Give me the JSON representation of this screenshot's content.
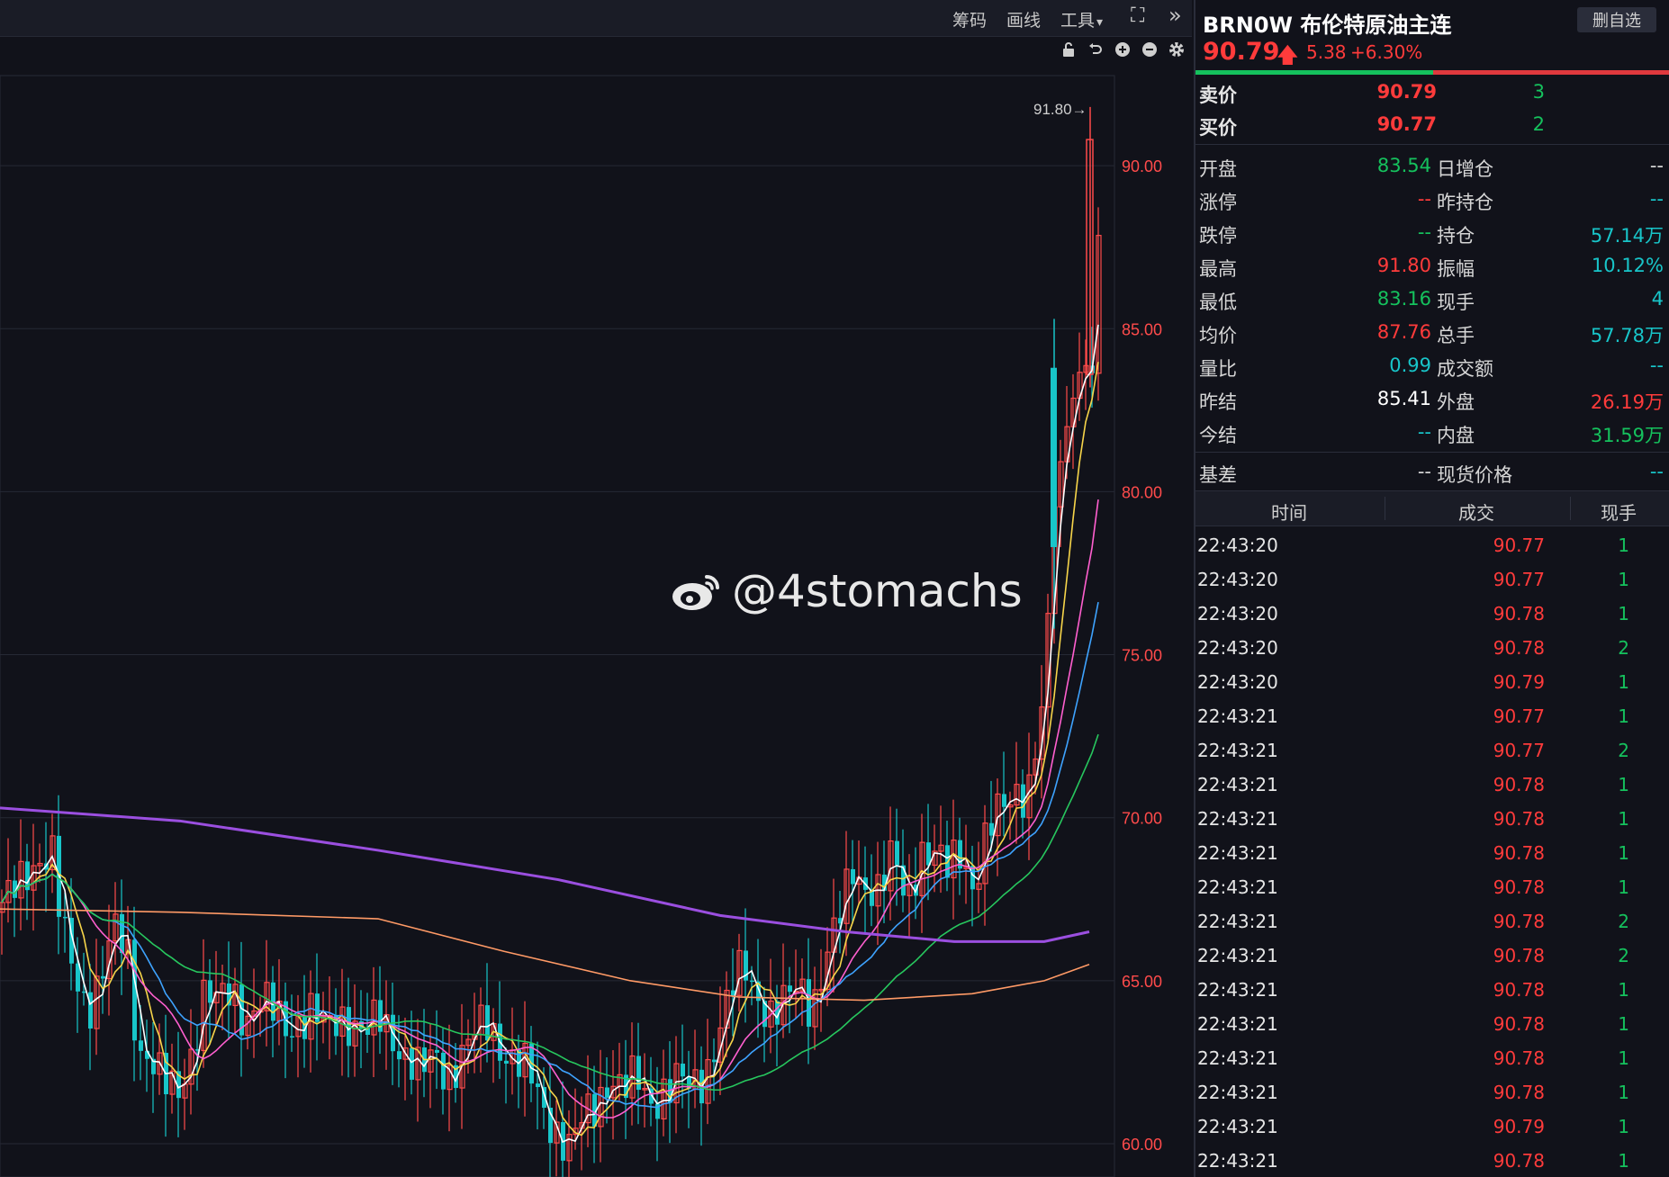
{
  "toolbar": {
    "chips_label": "筹码",
    "draw_label": "画线",
    "tools_label": "工具",
    "tools_caret": "▾",
    "fullscreen_glyph": "⛶",
    "expand_glyph": "»",
    "sub_icons": [
      "lock-icon",
      "undo-icon",
      "zoom-in-icon",
      "zoom-out-icon",
      "gear-icon"
    ]
  },
  "chart": {
    "y_axis_labels": [
      "90.00",
      "85.00",
      "80.00",
      "75.00",
      "70.00",
      "65.00",
      "60.00"
    ],
    "y_axis_values": [
      90,
      85,
      80,
      75,
      70,
      65,
      60
    ],
    "y_range": [
      59.5,
      93.5
    ],
    "high_marker": "91.80→",
    "high_value": 91.8,
    "colors": {
      "up": "#ff4b4b",
      "down": "#18c5c9",
      "ma5": "#ffffff",
      "ma10": "#f7d54a",
      "ma20": "#ff5fcf",
      "ma30": "#3ea3ff",
      "ma60": "#27c75e",
      "ma120": "#ff9a66",
      "ma250": "#9b4fe0"
    }
  },
  "watermark": {
    "text": "@4stomachs",
    "logo": "weibo-logo-icon"
  },
  "quote": {
    "title": "BRN0W 布伦特原油主连",
    "delete_watch_label": "删自选",
    "last_price": "90.79",
    "arrow": "🡅",
    "change": "5.38",
    "change_pct": "+6.30%",
    "buy_ratio": 0.5
  },
  "orderbook": [
    {
      "label": "卖价",
      "price": "90.79",
      "volume": "3"
    },
    {
      "label": "买价",
      "price": "90.77",
      "volume": "2"
    }
  ],
  "stats": [
    {
      "l1": "开盘",
      "v1": "83.54",
      "c1": "#15c15d",
      "l2": "日增仓",
      "v2": "--",
      "c2": "#d6d6d6"
    },
    {
      "l1": "涨停",
      "v1": "--",
      "c1": "#ff3b3b",
      "l2": "昨持仓",
      "v2": "--",
      "c2": "#18c5c9"
    },
    {
      "l1": "跌停",
      "v1": "--",
      "c1": "#15c15d",
      "l2": "持仓",
      "v2": "57.14万",
      "c2": "#18c5c9"
    },
    {
      "l1": "最高",
      "v1": "91.80",
      "c1": "#ff3b3b",
      "l2": "振幅",
      "v2": "10.12%",
      "c2": "#18c5c9"
    },
    {
      "l1": "最低",
      "v1": "83.16",
      "c1": "#15c15d",
      "l2": "现手",
      "v2": "4",
      "c2": "#18c5c9"
    },
    {
      "l1": "均价",
      "v1": "87.76",
      "c1": "#ff3b3b",
      "l2": "总手",
      "v2": "57.78万",
      "c2": "#18c5c9"
    },
    {
      "l1": "量比",
      "v1": "0.99",
      "c1": "#18c5c9",
      "l2": "成交额",
      "v2": "--",
      "c2": "#18c5c9"
    },
    {
      "l1": "昨结",
      "v1": "85.41",
      "c1": "#ffffff",
      "l2": "外盘",
      "v2": "26.19万",
      "c2": "#ff3b3b"
    },
    {
      "l1": "今结",
      "v1": "--",
      "c1": "#18c5c9",
      "l2": "内盘",
      "v2": "31.59万",
      "c2": "#15c15d"
    }
  ],
  "basis": {
    "l1": "基差",
    "v1": "--",
    "l2": "现货价格",
    "v2": "--"
  },
  "trades": {
    "headers": [
      "时间",
      "成交",
      "现手"
    ],
    "rows": [
      {
        "time": "22:43:20",
        "price": "90.77",
        "vol": "1"
      },
      {
        "time": "22:43:20",
        "price": "90.77",
        "vol": "1"
      },
      {
        "time": "22:43:20",
        "price": "90.78",
        "vol": "1"
      },
      {
        "time": "22:43:20",
        "price": "90.78",
        "vol": "2"
      },
      {
        "time": "22:43:20",
        "price": "90.79",
        "vol": "1"
      },
      {
        "time": "22:43:21",
        "price": "90.77",
        "vol": "1"
      },
      {
        "time": "22:43:21",
        "price": "90.77",
        "vol": "2"
      },
      {
        "time": "22:43:21",
        "price": "90.78",
        "vol": "1"
      },
      {
        "time": "22:43:21",
        "price": "90.78",
        "vol": "1"
      },
      {
        "time": "22:43:21",
        "price": "90.78",
        "vol": "1"
      },
      {
        "time": "22:43:21",
        "price": "90.78",
        "vol": "1"
      },
      {
        "time": "22:43:21",
        "price": "90.78",
        "vol": "2"
      },
      {
        "time": "22:43:21",
        "price": "90.78",
        "vol": "2"
      },
      {
        "time": "22:43:21",
        "price": "90.78",
        "vol": "1"
      },
      {
        "time": "22:43:21",
        "price": "90.78",
        "vol": "1"
      },
      {
        "time": "22:43:21",
        "price": "90.78",
        "vol": "1"
      },
      {
        "time": "22:43:21",
        "price": "90.78",
        "vol": "1"
      },
      {
        "time": "22:43:21",
        "price": "90.79",
        "vol": "1"
      },
      {
        "time": "22:43:21",
        "price": "90.78",
        "vol": "1"
      }
    ]
  }
}
